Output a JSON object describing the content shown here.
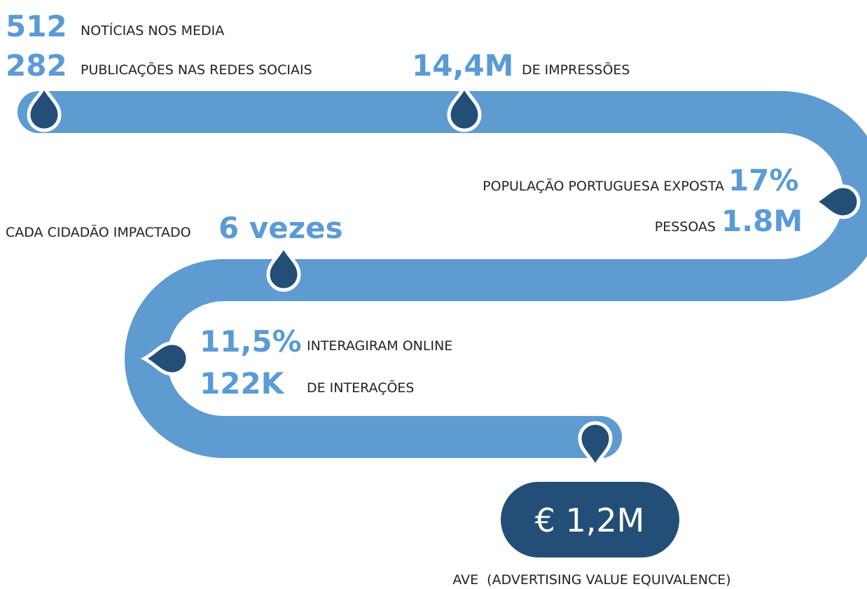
{
  "items": [
    {
      "value": "512",
      "label": "NOTÍCIAS NOS MEDIA"
    },
    {
      "value": "282",
      "label": "PUBLICAÇÕES NAS REDES SOCIAIS"
    },
    {
      "value": "14,4M",
      "label": "DE IMPRESSÕES"
    },
    {
      "value": "17%",
      "label": "POPULAÇÃO PORTUGUESA EXPOSTA"
    },
    {
      "value": "1.8M",
      "label": "PESSOAS"
    },
    {
      "value": "6 vezes",
      "label": "CADA CIDADÃO IMPACTADO"
    },
    {
      "value": "11,5%",
      "label": "INTERAGIRAM ONLINE"
    },
    {
      "value": "122K",
      "label": "DE INTERAÇÕES"
    }
  ],
  "ave": {
    "value": "€ 1,2M",
    "label": "AVE  (ADVERTISING VALUE EQUIVALENCE)"
  }
}
